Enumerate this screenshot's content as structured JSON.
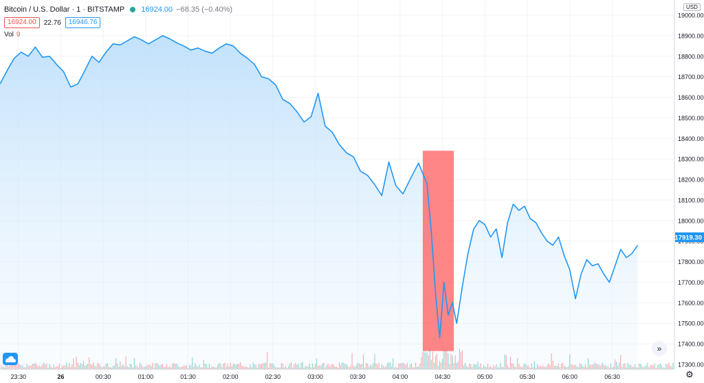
{
  "header": {
    "symbol": "Bitcoin / U.S. Dollar · 1 · BITSTAMP",
    "price": "16924.00",
    "change": "−68.35 (−0.40%)",
    "bid": "16924.00",
    "spread": "22.76",
    "ask": "16946.76",
    "vol_label": "Vol",
    "vol_value": "9"
  },
  "axis": {
    "currency": "USD",
    "last_price_label": "17919.30"
  },
  "colors": {
    "line": "#2196f3",
    "area_top": "#bbdefb",
    "vol_up": "#26a69a",
    "vol_down": "#ef5350",
    "highlight": "#ff5252",
    "grid": "#f0f3fa"
  },
  "icons": {
    "logo": "tradingview-logo-icon",
    "goto": "go-to-realtime-icon",
    "settings": "gear-icon"
  },
  "chart_data": {
    "type": "area",
    "title": "Bitcoin / U.S. Dollar · 1 · BITSTAMP",
    "x_ticks": [
      "23:30",
      "26",
      "00:30",
      "01:00",
      "01:30",
      "02:00",
      "02:30",
      "03:00",
      "03:30",
      "04:00",
      "04:30",
      "05:00",
      "05:30",
      "06:00",
      "06:30"
    ],
    "y_ticks": [
      "19000.00",
      "18900.00",
      "18800.00",
      "18700.00",
      "18600.00",
      "18500.00",
      "18400.00",
      "18300.00",
      "18200.00",
      "18100.00",
      "18000.00",
      "17900.00",
      "17800.00",
      "17700.00",
      "17600.00",
      "17500.00",
      "17400.00",
      "17300.00"
    ],
    "ylim": [
      17300,
      19000
    ],
    "x_range_minutes": [
      -43,
      434
    ],
    "grid": true,
    "series": [
      {
        "points": [
          [
            -43,
            18665
          ],
          [
            -38,
            18730
          ],
          [
            -33,
            18790
          ],
          [
            -28,
            18820
          ],
          [
            -23,
            18800
          ],
          [
            -18,
            18845
          ],
          [
            -13,
            18795
          ],
          [
            -8,
            18800
          ],
          [
            -3,
            18760
          ],
          [
            2,
            18725
          ],
          [
            7,
            18650
          ],
          [
            12,
            18665
          ],
          [
            17,
            18730
          ],
          [
            22,
            18800
          ],
          [
            27,
            18770
          ],
          [
            32,
            18820
          ],
          [
            37,
            18860
          ],
          [
            42,
            18855
          ],
          [
            47,
            18875
          ],
          [
            52,
            18895
          ],
          [
            57,
            18880
          ],
          [
            62,
            18860
          ],
          [
            67,
            18880
          ],
          [
            72,
            18900
          ],
          [
            77,
            18885
          ],
          [
            82,
            18865
          ],
          [
            87,
            18850
          ],
          [
            92,
            18830
          ],
          [
            97,
            18840
          ],
          [
            102,
            18825
          ],
          [
            107,
            18815
          ],
          [
            112,
            18840
          ],
          [
            117,
            18860
          ],
          [
            122,
            18850
          ],
          [
            127,
            18815
          ],
          [
            132,
            18790
          ],
          [
            137,
            18760
          ],
          [
            142,
            18700
          ],
          [
            147,
            18690
          ],
          [
            152,
            18660
          ],
          [
            157,
            18590
          ],
          [
            162,
            18570
          ],
          [
            167,
            18530
          ],
          [
            172,
            18480
          ],
          [
            177,
            18505
          ],
          [
            182,
            18620
          ],
          [
            187,
            18460
          ],
          [
            192,
            18430
          ],
          [
            197,
            18370
          ],
          [
            202,
            18330
          ],
          [
            207,
            18310
          ],
          [
            212,
            18240
          ],
          [
            217,
            18220
          ],
          [
            222,
            18175
          ],
          [
            227,
            18122
          ],
          [
            232,
            18285
          ],
          [
            237,
            18170
          ],
          [
            242,
            18130
          ],
          [
            247,
            18200
          ],
          [
            250,
            18240
          ],
          [
            253,
            18280
          ],
          [
            256,
            18230
          ],
          [
            259,
            18180
          ],
          [
            262,
            17950
          ],
          [
            265,
            17650
          ],
          [
            268,
            17430
          ],
          [
            271,
            17700
          ],
          [
            274,
            17540
          ],
          [
            277,
            17600
          ],
          [
            280,
            17500
          ],
          [
            284,
            17680
          ],
          [
            288,
            17840
          ],
          [
            292,
            17960
          ],
          [
            296,
            18000
          ],
          [
            300,
            17980
          ],
          [
            304,
            17920
          ],
          [
            308,
            17960
          ],
          [
            312,
            17820
          ],
          [
            316,
            17990
          ],
          [
            320,
            18080
          ],
          [
            324,
            18050
          ],
          [
            328,
            18070
          ],
          [
            332,
            18010
          ],
          [
            336,
            17990
          ],
          [
            340,
            17940
          ],
          [
            344,
            17900
          ],
          [
            348,
            17880
          ],
          [
            352,
            17920
          ],
          [
            356,
            17830
          ],
          [
            360,
            17760
          ],
          [
            364,
            17620
          ],
          [
            368,
            17740
          ],
          [
            372,
            17810
          ],
          [
            376,
            17780
          ],
          [
            380,
            17790
          ],
          [
            384,
            17740
          ],
          [
            388,
            17700
          ],
          [
            392,
            17780
          ],
          [
            396,
            17860
          ],
          [
            400,
            17820
          ],
          [
            404,
            17840
          ],
          [
            408,
            17880
          ]
        ]
      },
      {
        "name": "Vol",
        "note": "per-minute volume bars"
      }
    ],
    "highlight_band": {
      "x_range_minutes": [
        256,
        278
      ],
      "ylim": [
        17365,
        18340
      ]
    }
  }
}
